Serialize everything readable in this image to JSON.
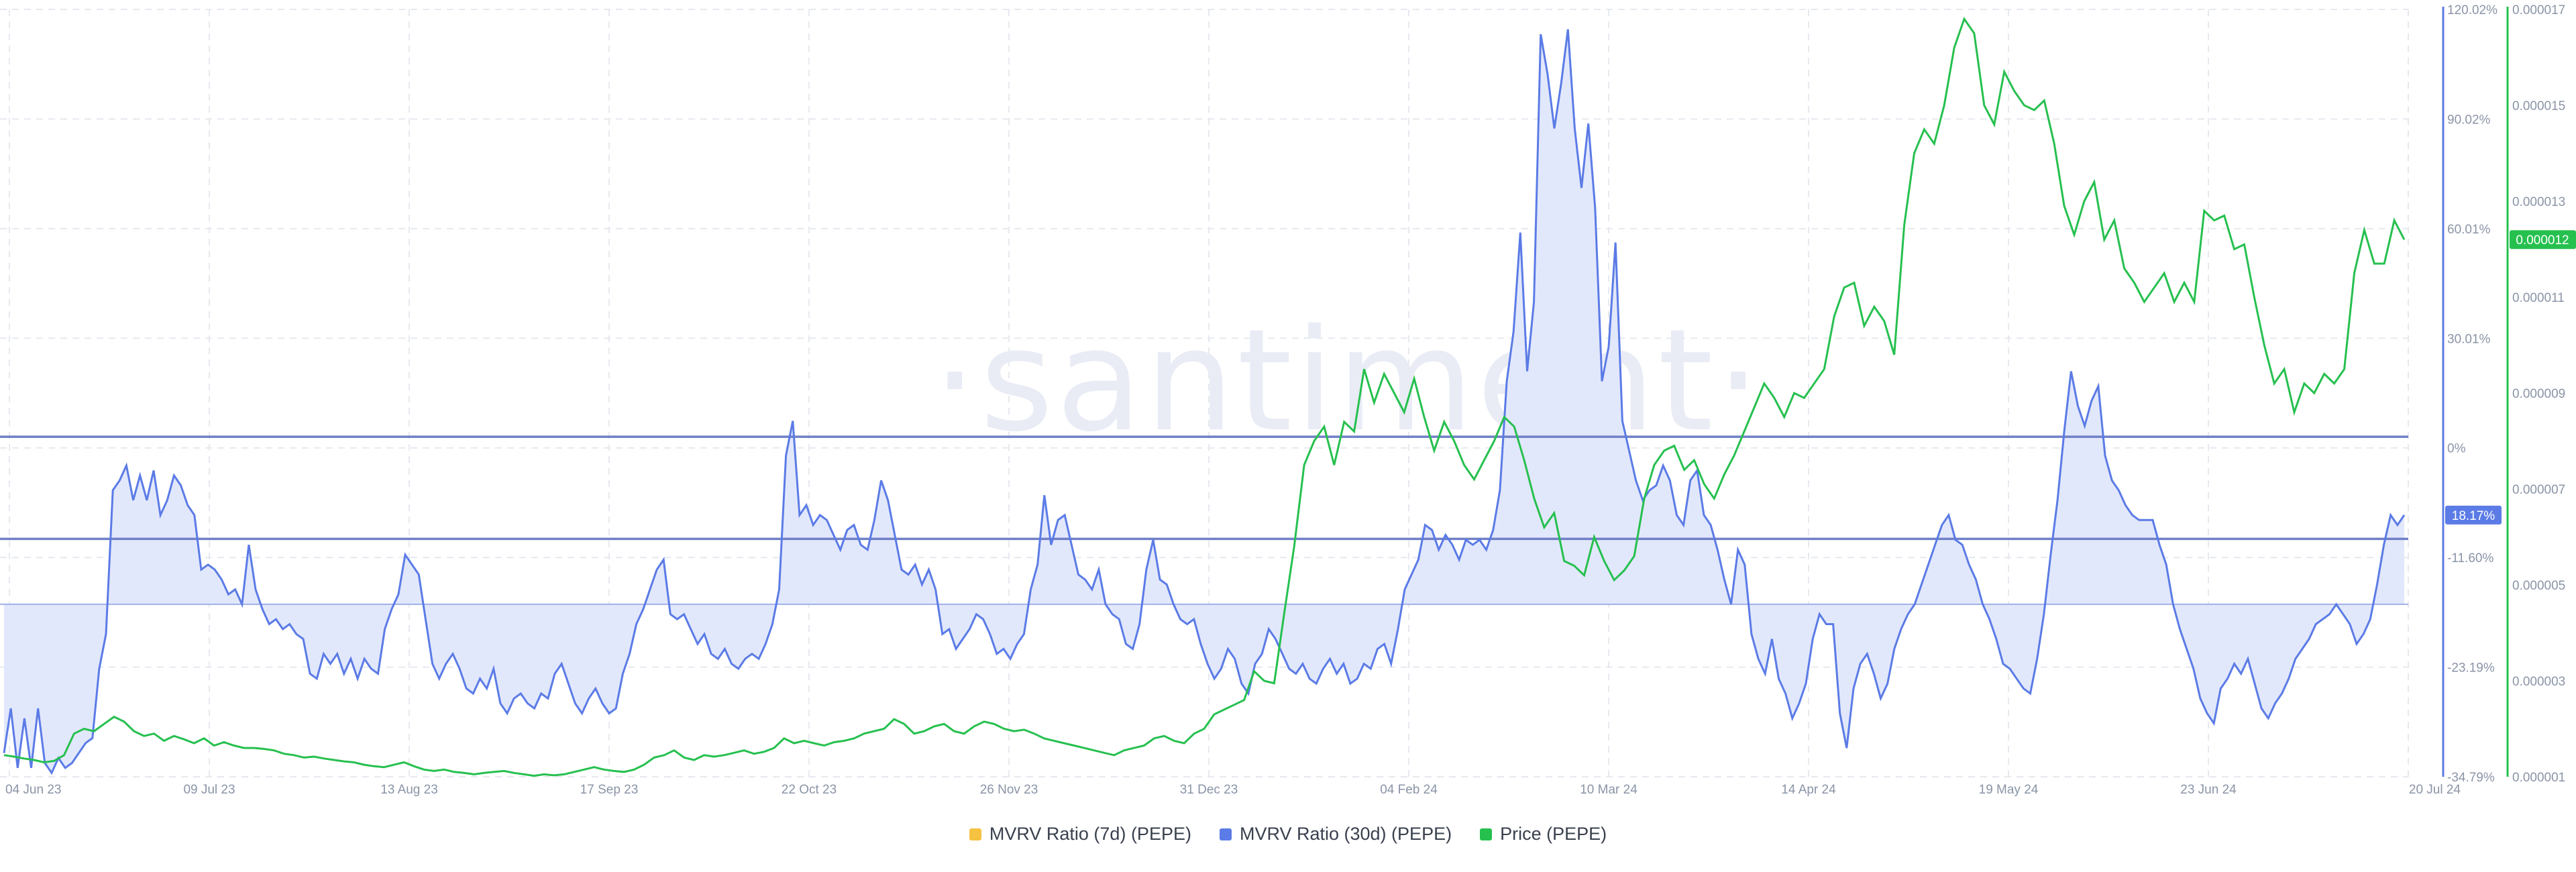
{
  "colors": {
    "mvrv7": "#f5c242",
    "mvrv30": "#5b7be6",
    "price": "#26c04f",
    "fill": "#e2e8fb",
    "grid": "#e6e9ef",
    "hline": "#6f80c7"
  },
  "legend": [
    {
      "label": "MVRV Ratio (7d) (PEPE)",
      "color": "#f5c242"
    },
    {
      "label": "MVRV Ratio (30d) (PEPE)",
      "color": "#5b7be6"
    },
    {
      "label": "Price (PEPE)",
      "color": "#26c04f"
    }
  ],
  "watermark": "·santiment·",
  "chart_data": {
    "type": "line",
    "x_tick_labels": [
      "04 Jun 23",
      "09 Jul 23",
      "13 Aug 23",
      "17 Sep 23",
      "22 Oct 23",
      "26 Nov 23",
      "31 Dec 23",
      "04 Feb 24",
      "10 Mar 24",
      "14 Apr 24",
      "19 May 24",
      "23 Jun 24",
      "20 Jul 24"
    ],
    "y_left_ticks": [
      "120.02%",
      "90.02%",
      "60.01%",
      "30.01%",
      "0%",
      "-11.60%",
      "-23.19%",
      "-34.79%"
    ],
    "y_left_range": [
      -34.79,
      120.02
    ],
    "y_right_ticks": [
      "0.000017",
      "0.000015",
      "0.000013",
      "0.000011",
      "0.000009",
      "0.000007",
      "0.000005",
      "0.000003",
      "0.000001"
    ],
    "y_right_range": [
      1e-06,
      1.7e-05
    ],
    "horizontal_lines": [
      33.8,
      13.2
    ],
    "current_labels": {
      "mvrv30": "18.17%",
      "price": "0.000012"
    },
    "grid": true,
    "legend_position": "bottom",
    "series": [
      {
        "name": "MVRV Ratio (30d) (PEPE)",
        "axis": "left",
        "values": [
          -30,
          -21,
          -33,
          -23,
          -33,
          -21,
          -32,
          -34,
          -31,
          -33,
          -32,
          -30,
          -28,
          -27,
          -13,
          -6,
          23,
          25,
          28,
          21,
          26,
          21,
          27,
          18,
          21,
          26,
          24,
          20,
          18,
          7,
          8,
          7,
          5,
          2,
          3,
          0,
          12,
          3,
          -1,
          -4,
          -3,
          -5,
          -4,
          -6,
          -7,
          -14,
          -15,
          -10,
          -12,
          -10,
          -14,
          -11,
          -15,
          -11,
          -13,
          -14,
          -5,
          -1,
          2,
          10,
          8,
          6,
          -3,
          -12,
          -15,
          -12,
          -10,
          -13,
          -17,
          -18,
          -15,
          -17,
          -13,
          -20,
          -22,
          -19,
          -18,
          -20,
          -21,
          -18,
          -19,
          -14,
          -12,
          -16,
          -20,
          -22,
          -19,
          -17,
          -20,
          -22,
          -21,
          -14,
          -10,
          -4,
          -1,
          3,
          7,
          9,
          -2,
          -3,
          -2,
          -5,
          -8,
          -6,
          -10,
          -11,
          -9,
          -12,
          -13,
          -11,
          -10,
          -11,
          -8,
          -4,
          3,
          30,
          37,
          18,
          20,
          16,
          18,
          17,
          14,
          11,
          15,
          16,
          12,
          11,
          17,
          25,
          21,
          14,
          7,
          6,
          8,
          4,
          7,
          3,
          -6,
          -5,
          -9,
          -7,
          -5,
          -2,
          -3,
          -6,
          -10,
          -9,
          -11,
          -8,
          -6,
          3,
          8,
          22,
          12,
          17,
          18,
          12,
          6,
          5,
          3,
          7,
          0,
          -2,
          -3,
          -8,
          -9,
          -4,
          7,
          13,
          5,
          4,
          0,
          -3,
          -4,
          -3,
          -8,
          -12,
          -15,
          -13,
          -9,
          -11,
          -16,
          -18,
          -12,
          -10,
          -5,
          -7,
          -10,
          -13,
          -14,
          -12,
          -15,
          -16,
          -13,
          -11,
          -14,
          -12,
          -16,
          -15,
          -12,
          -13,
          -9,
          -8,
          -12,
          -5,
          3,
          6,
          9,
          16,
          15,
          11,
          14,
          12,
          9,
          13,
          12,
          13,
          11,
          15,
          23,
          45,
          55,
          75,
          47,
          61,
          115,
          107,
          96,
          105,
          116,
          96,
          84,
          97,
          80,
          45,
          52,
          73,
          37,
          31,
          25,
          21,
          23,
          24,
          28,
          25,
          18,
          16,
          25,
          27,
          18,
          16,
          11,
          5,
          0,
          11,
          8,
          -6,
          -11,
          -14,
          -7,
          -15,
          -18,
          -23,
          -20,
          -16,
          -7,
          -2,
          -4,
          -4,
          -22,
          -29,
          -17,
          -12,
          -10,
          -14,
          -19,
          -16,
          -9,
          -5,
          -2,
          0,
          4,
          8,
          12,
          16,
          18,
          13,
          12,
          8,
          5,
          0,
          -3,
          -7,
          -12,
          -13,
          -15,
          -17,
          -18,
          -11,
          -2,
          10,
          21,
          35,
          47,
          40,
          36,
          41,
          44,
          30,
          25,
          23,
          20,
          18,
          17,
          17,
          17,
          12,
          8,
          0,
          -5,
          -9,
          -13,
          -19,
          -22,
          -24,
          -17,
          -15,
          -12,
          -14,
          -11,
          -16,
          -21,
          -23,
          -20,
          -18,
          -15,
          -11,
          -9,
          -7,
          -4,
          -3,
          -2,
          0,
          -2,
          -4,
          -8,
          -6,
          -3,
          4,
          12,
          18,
          16,
          18
        ],
        "note_values": "MVRV percent per 3-day step, read from chart"
      },
      {
        "name": "Price (PEPE)",
        "axis": "right",
        "values": [
          1.45e-06,
          1.42e-06,
          1.38e-06,
          1.35e-06,
          1.3e-06,
          1.33e-06,
          1.45e-06,
          1.9e-06,
          2e-06,
          1.95e-06,
          2.1e-06,
          2.25e-06,
          2.15e-06,
          1.95e-06,
          1.85e-06,
          1.9e-06,
          1.75e-06,
          1.85e-06,
          1.78e-06,
          1.7e-06,
          1.8e-06,
          1.65e-06,
          1.72e-06,
          1.65e-06,
          1.6e-06,
          1.6e-06,
          1.58e-06,
          1.55e-06,
          1.48e-06,
          1.45e-06,
          1.4e-06,
          1.42e-06,
          1.38e-06,
          1.35e-06,
          1.32e-06,
          1.3e-06,
          1.25e-06,
          1.22e-06,
          1.2e-06,
          1.25e-06,
          1.3e-06,
          1.22e-06,
          1.15e-06,
          1.12e-06,
          1.15e-06,
          1.1e-06,
          1.08e-06,
          1.05e-06,
          1.08e-06,
          1.1e-06,
          1.12e-06,
          1.08e-06,
          1.05e-06,
          1.02e-06,
          1.05e-06,
          1.03e-06,
          1.05e-06,
          1.1e-06,
          1.15e-06,
          1.2e-06,
          1.15e-06,
          1.12e-06,
          1.1e-06,
          1.15e-06,
          1.25e-06,
          1.4e-06,
          1.45e-06,
          1.55e-06,
          1.4e-06,
          1.35e-06,
          1.45e-06,
          1.42e-06,
          1.45e-06,
          1.5e-06,
          1.55e-06,
          1.48e-06,
          1.52e-06,
          1.6e-06,
          1.8e-06,
          1.7e-06,
          1.75e-06,
          1.7e-06,
          1.65e-06,
          1.72e-06,
          1.75e-06,
          1.8e-06,
          1.9e-06,
          1.95e-06,
          2e-06,
          2.2e-06,
          2.1e-06,
          1.9e-06,
          1.95e-06,
          2.05e-06,
          2.1e-06,
          1.95e-06,
          1.9e-06,
          2.05e-06,
          2.15e-06,
          2.1e-06,
          2e-06,
          1.95e-06,
          1.98e-06,
          1.9e-06,
          1.8e-06,
          1.75e-06,
          1.7e-06,
          1.65e-06,
          1.6e-06,
          1.55e-06,
          1.5e-06,
          1.45e-06,
          1.55e-06,
          1.6e-06,
          1.65e-06,
          1.8e-06,
          1.85e-06,
          1.75e-06,
          1.7e-06,
          1.9e-06,
          2e-06,
          2.3e-06,
          2.4e-06,
          2.5e-06,
          2.6e-06,
          3.2e-06,
          3e-06,
          2.95e-06,
          4.4e-06,
          5.8e-06,
          7.5e-06,
          8e-06,
          8.3e-06,
          7.5e-06,
          8.4e-06,
          8.2e-06,
          9.5e-06,
          8.8e-06,
          9.4e-06,
          9e-06,
          8.6e-06,
          9.3e-06,
          8.5e-06,
          7.8e-06,
          8.4e-06,
          8e-06,
          7.5e-06,
          7.2e-06,
          7.6e-06,
          8e-06,
          8.5e-06,
          8.3e-06,
          7.6e-06,
          6.8e-06,
          6.2e-06,
          6.5e-06,
          5.5e-06,
          5.4e-06,
          5.2e-06,
          6e-06,
          5.5e-06,
          5.1e-06,
          5.3e-06,
          5.6e-06,
          6.8e-06,
          7.5e-06,
          7.8e-06,
          7.9e-06,
          7.4e-06,
          7.6e-06,
          7.1e-06,
          6.8e-06,
          7.3e-06,
          7.7e-06,
          8.2e-06,
          8.7e-06,
          9.2e-06,
          8.9e-06,
          8.5e-06,
          9e-06,
          8.9e-06,
          9.2e-06,
          9.5e-06,
          1.06e-05,
          1.12e-05,
          1.13e-05,
          1.04e-05,
          1.08e-05,
          1.05e-05,
          9.8e-06,
          1.25e-05,
          1.4e-05,
          1.45e-05,
          1.42e-05,
          1.5e-05,
          1.62e-05,
          1.68e-05,
          1.65e-05,
          1.5e-05,
          1.46e-05,
          1.57e-05,
          1.53e-05,
          1.5e-05,
          1.49e-05,
          1.51e-05,
          1.42e-05,
          1.29e-05,
          1.23e-05,
          1.3e-05,
          1.34e-05,
          1.22e-05,
          1.26e-05,
          1.16e-05,
          1.13e-05,
          1.09e-05,
          1.12e-05,
          1.15e-05,
          1.09e-05,
          1.13e-05,
          1.09e-05,
          1.28e-05,
          1.26e-05,
          1.27e-05,
          1.2e-05,
          1.21e-05,
          1.1e-05,
          1e-05,
          9.2e-06,
          9.5e-06,
          8.6e-06,
          9.2e-06,
          9e-06,
          9.4e-06,
          9.2e-06,
          9.5e-06,
          1.15e-05,
          1.24e-05,
          1.17e-05,
          1.17e-05,
          1.26e-05,
          1.22e-05
        ]
      }
    ]
  }
}
